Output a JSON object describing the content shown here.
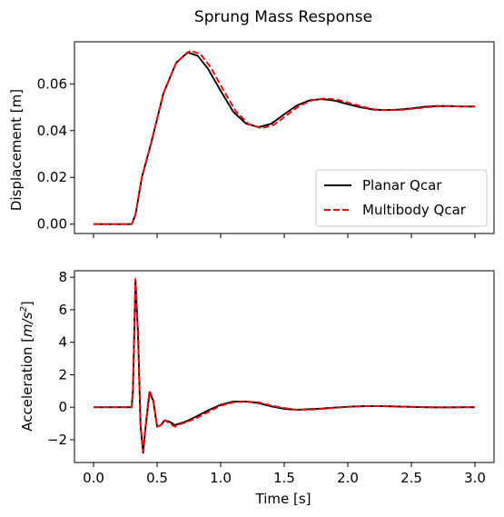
{
  "chart_data": {
    "title": "Sprung Mass Response",
    "series_styles": [
      {
        "name": "Planar Qcar",
        "color": "#000000",
        "dash": "solid"
      },
      {
        "name": "Multibody Qcar",
        "color": "#ff0000",
        "dash": "dashed"
      }
    ],
    "panels": [
      {
        "type": "line",
        "ylabel": "Displacement [m]",
        "xlim": [
          -0.15,
          3.15
        ],
        "ylim": [
          -0.004,
          0.078
        ],
        "xticks": [
          0.0,
          0.5,
          1.0,
          1.5,
          2.0,
          2.5,
          3.0
        ],
        "yticks": [
          0.0,
          0.02,
          0.04,
          0.06
        ],
        "ytick_labels": [
          "0.00",
          "0.02",
          "0.04",
          "0.06"
        ],
        "legend": {
          "position": "bottom-right"
        },
        "series": [
          {
            "name": "Planar Qcar",
            "x": [
              0.0,
              0.3,
              0.33,
              0.38,
              0.45,
              0.55,
              0.65,
              0.74,
              0.82,
              0.9,
              1.0,
              1.1,
              1.2,
              1.3,
              1.4,
              1.5,
              1.6,
              1.7,
              1.8,
              1.9,
              2.0,
              2.1,
              2.2,
              2.3,
              2.4,
              2.5,
              2.6,
              2.7,
              2.8,
              2.9,
              3.0
            ],
            "y": [
              0.0,
              0.0,
              0.004,
              0.02,
              0.034,
              0.056,
              0.069,
              0.0735,
              0.072,
              0.0665,
              0.057,
              0.048,
              0.043,
              0.0415,
              0.043,
              0.047,
              0.0508,
              0.053,
              0.0535,
              0.0528,
              0.0513,
              0.05,
              0.049,
              0.0488,
              0.049,
              0.0495,
              0.0502,
              0.0505,
              0.0505,
              0.0503,
              0.0503
            ]
          },
          {
            "name": "Multibody Qcar",
            "x": [
              0.0,
              0.3,
              0.33,
              0.38,
              0.45,
              0.55,
              0.65,
              0.76,
              0.84,
              0.92,
              1.02,
              1.12,
              1.22,
              1.32,
              1.42,
              1.52,
              1.62,
              1.72,
              1.82,
              1.92,
              2.02,
              2.12,
              2.22,
              2.32,
              2.42,
              2.52,
              2.62,
              2.72,
              2.82,
              2.92,
              3.0
            ],
            "y": [
              0.0,
              0.0,
              0.004,
              0.02,
              0.034,
              0.056,
              0.069,
              0.0742,
              0.0728,
              0.0672,
              0.0575,
              0.0482,
              0.0428,
              0.041,
              0.0425,
              0.0466,
              0.0506,
              0.053,
              0.0538,
              0.0532,
              0.0517,
              0.0502,
              0.049,
              0.0487,
              0.0489,
              0.0494,
              0.05,
              0.0504,
              0.0505,
              0.0504,
              0.0504
            ]
          }
        ]
      },
      {
        "type": "line",
        "xlabel": "Time [s]",
        "ylabel_prefix": "Acceleration [",
        "ylabel_unit": "m/s",
        "ylabel_exp": "2",
        "ylabel_suffix": "]",
        "xlim": [
          -0.15,
          3.15
        ],
        "ylim": [
          -3.4,
          8.4
        ],
        "xticks": [
          0.0,
          0.5,
          1.0,
          1.5,
          2.0,
          2.5,
          3.0
        ],
        "xtick_labels": [
          "0.0",
          "0.5",
          "1.0",
          "1.5",
          "2.0",
          "2.5",
          "3.0"
        ],
        "yticks": [
          -2,
          0,
          2,
          4,
          6,
          8
        ],
        "ytick_labels": [
          "−2",
          "0",
          "2",
          "4",
          "6",
          "8"
        ],
        "series": [
          {
            "name": "Planar Qcar",
            "x": [
              0.0,
              0.3,
              0.31,
              0.33,
              0.35,
              0.37,
              0.39,
              0.41,
              0.44,
              0.47,
              0.5,
              0.53,
              0.56,
              0.6,
              0.64,
              0.68,
              0.72,
              0.8,
              0.9,
              1.0,
              1.1,
              1.2,
              1.3,
              1.4,
              1.5,
              1.6,
              1.7,
              1.8,
              1.9,
              2.0,
              2.1,
              2.2,
              2.3,
              2.4,
              2.5,
              2.6,
              2.7,
              2.8,
              2.9,
              3.0
            ],
            "y": [
              0.0,
              0.0,
              1.0,
              7.8,
              4.5,
              -1.2,
              -2.8,
              -1.2,
              0.9,
              0.4,
              -1.2,
              -1.1,
              -0.8,
              -0.9,
              -1.1,
              -1.0,
              -0.9,
              -0.6,
              -0.2,
              0.15,
              0.35,
              0.35,
              0.25,
              0.05,
              -0.1,
              -0.15,
              -0.12,
              -0.08,
              -0.02,
              0.03,
              0.06,
              0.07,
              0.06,
              0.04,
              0.02,
              0.0,
              -0.01,
              -0.01,
              0.0,
              0.0
            ]
          },
          {
            "name": "Multibody Qcar",
            "x": [
              0.0,
              0.3,
              0.31,
              0.33,
              0.35,
              0.37,
              0.39,
              0.41,
              0.44,
              0.47,
              0.5,
              0.53,
              0.56,
              0.6,
              0.64,
              0.68,
              0.72,
              0.8,
              0.9,
              1.0,
              1.1,
              1.2,
              1.3,
              1.4,
              1.5,
              1.6,
              1.7,
              1.8,
              1.9,
              2.0,
              2.1,
              2.2,
              2.3,
              2.4,
              2.5,
              2.6,
              2.7,
              2.8,
              2.9,
              3.0
            ],
            "y": [
              0.0,
              0.0,
              1.1,
              7.9,
              4.6,
              -1.1,
              -2.7,
              -1.1,
              1.0,
              0.5,
              -1.2,
              -1.1,
              -0.8,
              -1.0,
              -1.2,
              -1.05,
              -0.95,
              -0.7,
              -0.3,
              0.1,
              0.3,
              0.35,
              0.3,
              0.1,
              -0.05,
              -0.15,
              -0.15,
              -0.1,
              -0.04,
              0.02,
              0.05,
              0.07,
              0.07,
              0.05,
              0.03,
              0.01,
              0.0,
              -0.01,
              0.0,
              0.0
            ]
          }
        ]
      }
    ]
  }
}
